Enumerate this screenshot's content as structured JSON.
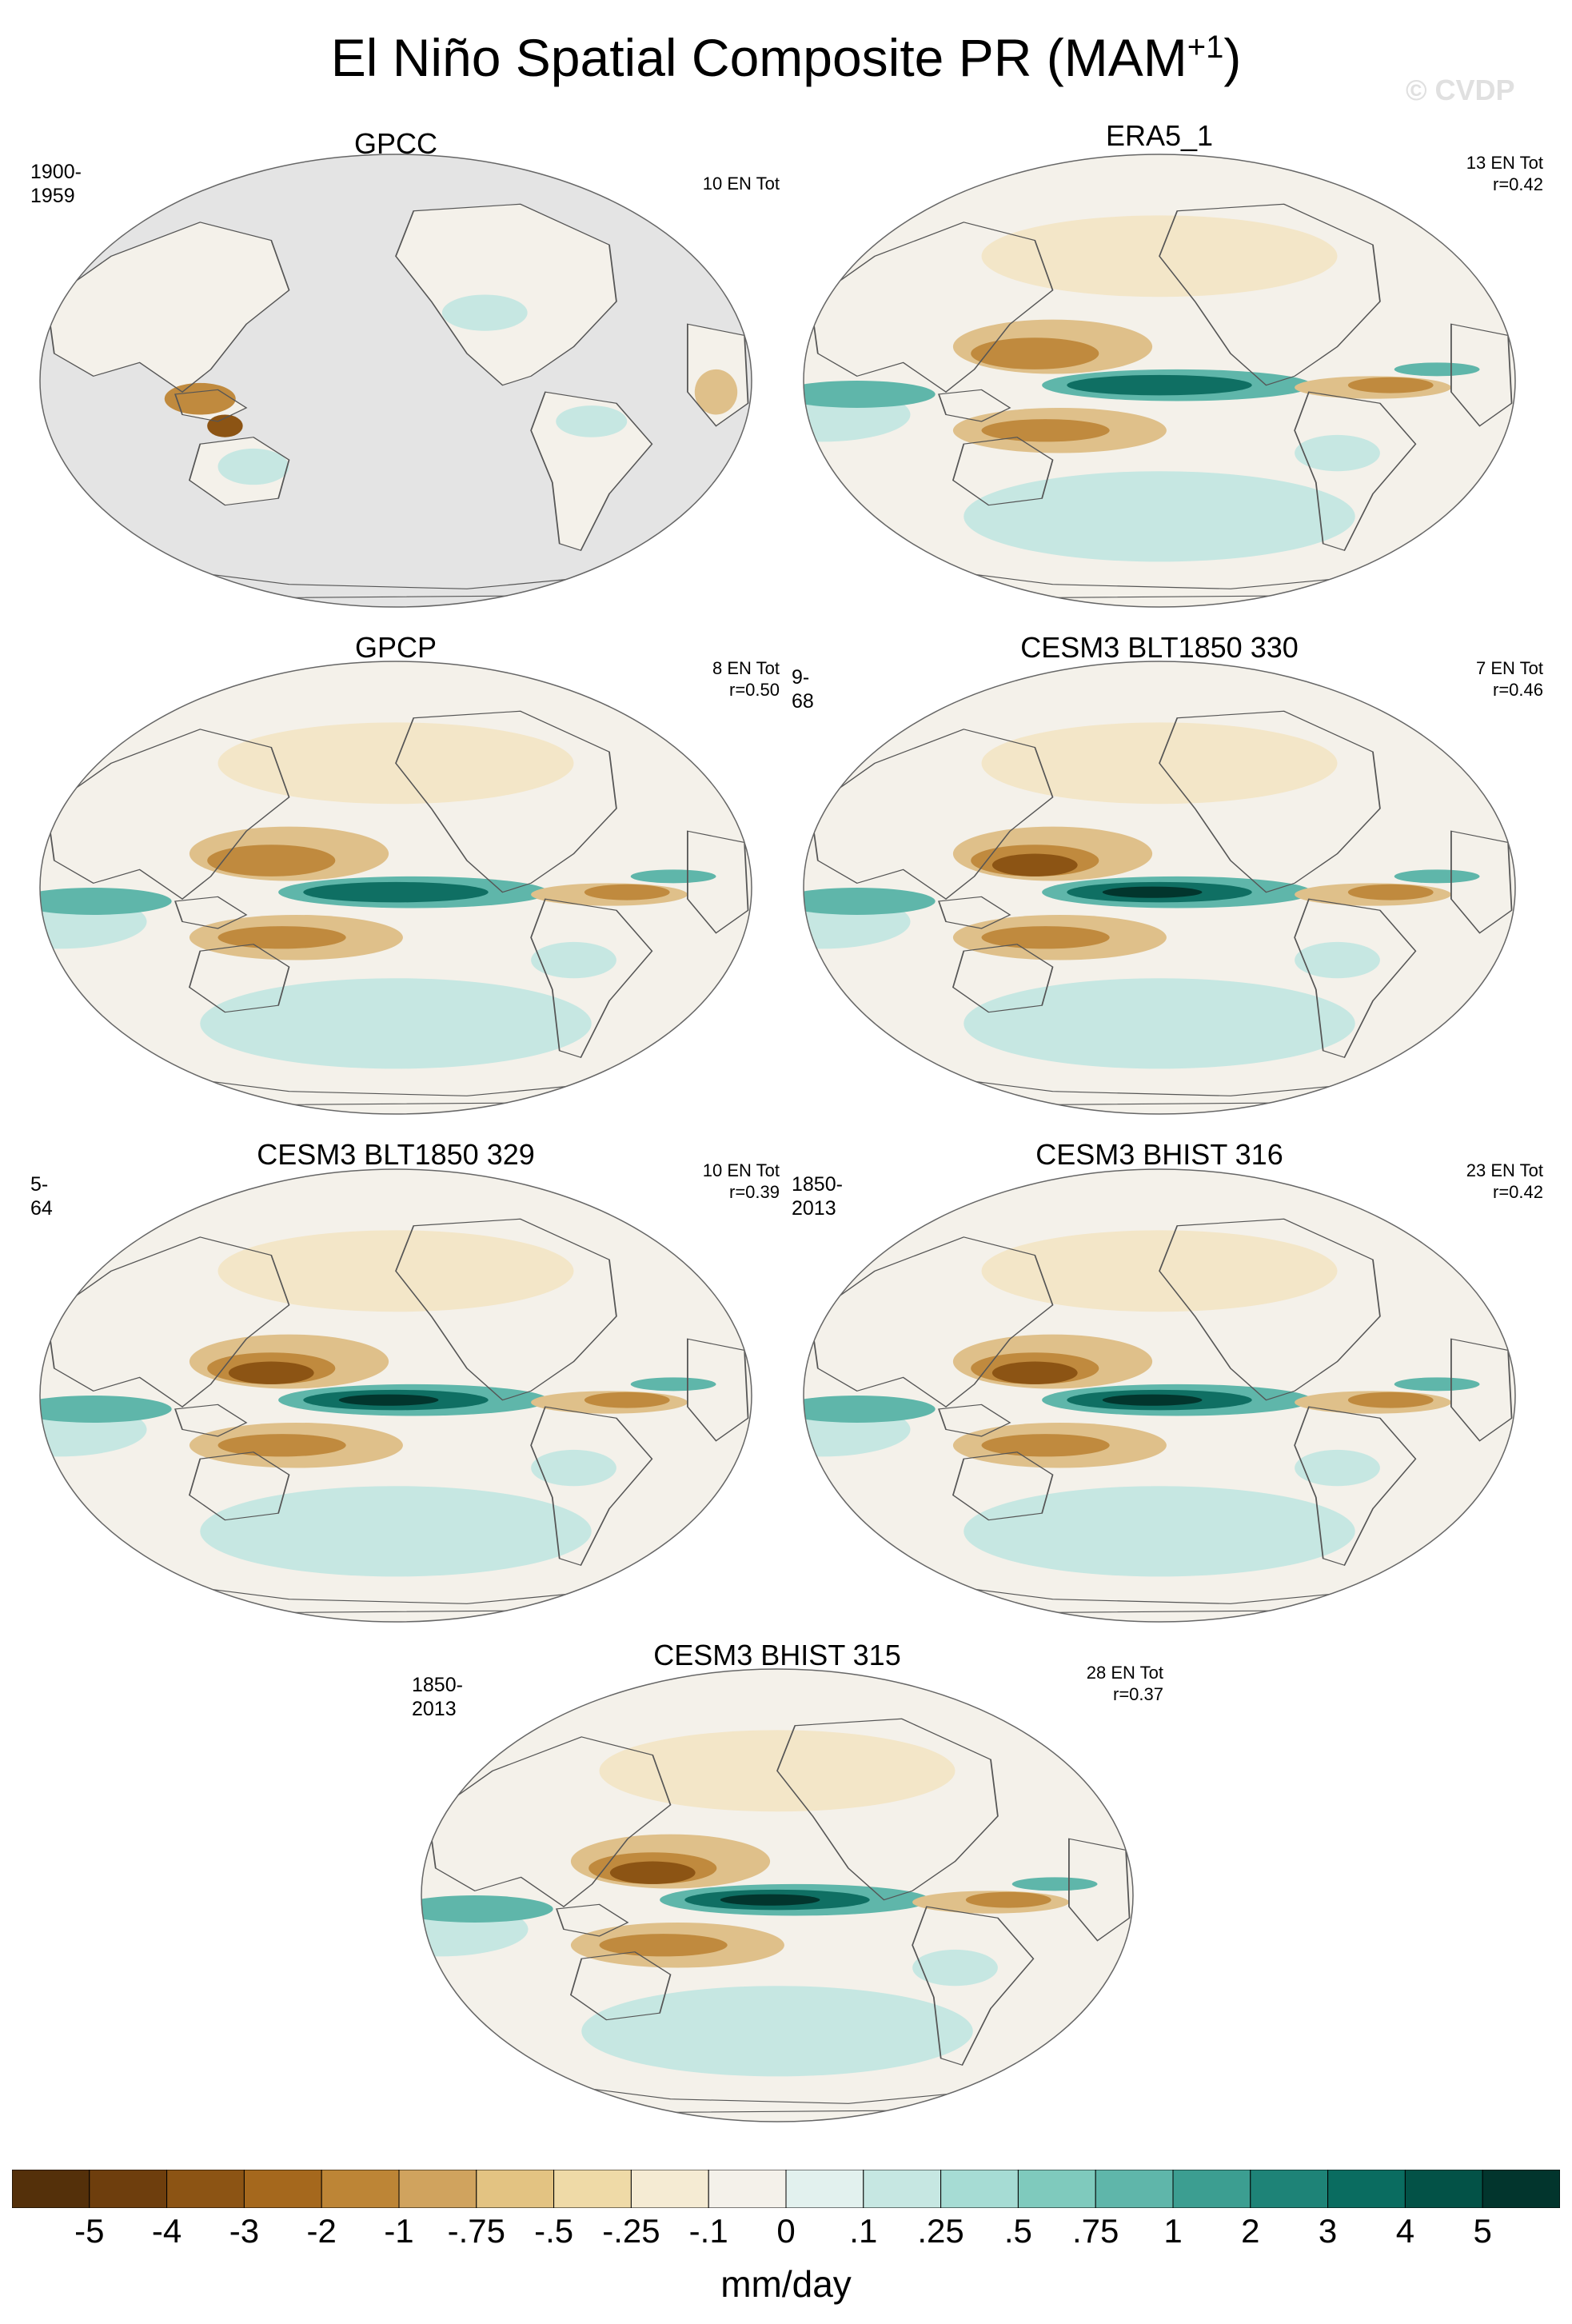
{
  "title": {
    "main": "El Niño Spatial Composite PR (MAM",
    "sup": "+1",
    "close": ")"
  },
  "watermark": "© CVDP",
  "colors": {
    "ocean_grey": "#e4e4e4",
    "coast": "#555555",
    "brown_dark": "#8c5414",
    "brown_mid": "#c08a3e",
    "brown_light": "#dfc08a",
    "tan": "#f3e6c8",
    "neutral": "#f4f1ea",
    "teal_light": "#c6e7e2",
    "teal_mid": "#5fb6aa",
    "teal_dark": "#0f6f63",
    "teal_deep": "#02352d"
  },
  "panels": [
    {
      "title": "GPCC",
      "left_label": "1900-1959",
      "right_lines": [
        "10 EN Tot"
      ],
      "kind": "obs_land"
    },
    {
      "title": "ERA5_1",
      "left_label": "",
      "right_lines": [
        "13 EN Tot",
        "r=0.42"
      ],
      "kind": "model"
    },
    {
      "title": "GPCP",
      "left_label": "",
      "right_lines": [
        "8 EN Tot",
        "r=0.50"
      ],
      "kind": "model"
    },
    {
      "title": "CESM3 BLT1850 330",
      "left_label": "9-68",
      "right_lines": [
        "7 EN Tot",
        "r=0.46"
      ],
      "kind": "model"
    },
    {
      "title": "CESM3 BLT1850 329",
      "left_label": "5-64",
      "right_lines": [
        "10 EN Tot",
        "r=0.39"
      ],
      "kind": "model"
    },
    {
      "title": "CESM3 BHIST 316",
      "left_label": "1850-2013",
      "right_lines": [
        "23 EN Tot",
        "r=0.42"
      ],
      "kind": "model"
    },
    {
      "title": "CESM3 BHIST 315",
      "left_label": "1850-2013",
      "right_lines": [
        "28 EN Tot",
        "r=0.37"
      ],
      "kind": "model"
    }
  ],
  "chart_data": {
    "type": "heatmap",
    "projection": "Robinson, Pacific-centered",
    "variable": "PR",
    "season": "MAM+1",
    "units": "mm/day",
    "colorbar": {
      "levels": [
        "-5",
        "-4",
        "-3",
        "-2",
        "-1",
        "-.75",
        "-.5",
        "-.25",
        "-.1",
        "0",
        ".1",
        ".25",
        ".5",
        ".75",
        "1",
        "2",
        "3",
        "4",
        "5"
      ],
      "colors": [
        "#54300a",
        "#6e3e0d",
        "#8c5414",
        "#a5681d",
        "#bd8536",
        "#d0a35e",
        "#e3c382",
        "#efdaa7",
        "#f5ebd3",
        "#f4f1ea",
        "#e2f1ee",
        "#c6e7e2",
        "#a6dcd4",
        "#7fcabd",
        "#5fb6aa",
        "#3c9e91",
        "#1e8377",
        "#0a6c60",
        "#035247",
        "#02352d"
      ]
    }
  }
}
